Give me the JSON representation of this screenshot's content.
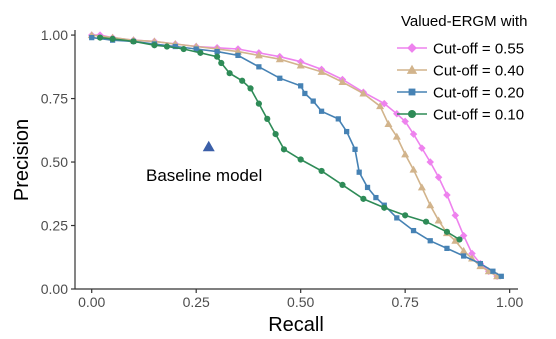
{
  "chart_data": {
    "type": "line",
    "xlabel": "Recall",
    "ylabel": "Precision",
    "xlim": [
      -0.04,
      1.02
    ],
    "ylim": [
      0,
      1.02
    ],
    "x_ticks": [
      "0.00",
      "0.25",
      "0.50",
      "0.75",
      "1.00"
    ],
    "y_ticks": [
      "0.00",
      "0.25",
      "0.50",
      "0.75",
      "1.00"
    ],
    "x_tick_values": [
      0,
      0.25,
      0.5,
      0.75,
      1.0
    ],
    "y_tick_values": [
      0,
      0.25,
      0.5,
      0.75,
      1.0
    ],
    "grid": false,
    "legend": {
      "title": "Valued-ERGM with",
      "placement": "top-right"
    },
    "series": [
      {
        "name": "Cut-off = 0.55",
        "color": "#ee82ee",
        "marker": "diamond",
        "points": [
          [
            0.0,
            1.0
          ],
          [
            0.02,
            1.0
          ],
          [
            0.05,
            0.99
          ],
          [
            0.1,
            0.98
          ],
          [
            0.15,
            0.975
          ],
          [
            0.2,
            0.965
          ],
          [
            0.25,
            0.955
          ],
          [
            0.3,
            0.95
          ],
          [
            0.35,
            0.945
          ],
          [
            0.4,
            0.93
          ],
          [
            0.45,
            0.915
          ],
          [
            0.5,
            0.895
          ],
          [
            0.55,
            0.865
          ],
          [
            0.6,
            0.825
          ],
          [
            0.65,
            0.775
          ],
          [
            0.7,
            0.73
          ],
          [
            0.73,
            0.69
          ],
          [
            0.75,
            0.66
          ],
          [
            0.77,
            0.61
          ],
          [
            0.79,
            0.555
          ],
          [
            0.81,
            0.5
          ],
          [
            0.83,
            0.44
          ],
          [
            0.85,
            0.37
          ],
          [
            0.87,
            0.29
          ],
          [
            0.89,
            0.21
          ],
          [
            0.91,
            0.14
          ],
          [
            0.93,
            0.1
          ],
          [
            0.95,
            0.07
          ],
          [
            0.97,
            0.05
          ]
        ]
      },
      {
        "name": "Cut-off = 0.40",
        "color": "#d2b48c",
        "marker": "triangle",
        "points": [
          [
            0.0,
            1.0
          ],
          [
            0.05,
            0.99
          ],
          [
            0.1,
            0.98
          ],
          [
            0.15,
            0.975
          ],
          [
            0.2,
            0.965
          ],
          [
            0.25,
            0.955
          ],
          [
            0.3,
            0.945
          ],
          [
            0.35,
            0.935
          ],
          [
            0.4,
            0.92
          ],
          [
            0.45,
            0.905
          ],
          [
            0.5,
            0.88
          ],
          [
            0.55,
            0.855
          ],
          [
            0.6,
            0.815
          ],
          [
            0.65,
            0.77
          ],
          [
            0.69,
            0.72
          ],
          [
            0.71,
            0.65
          ],
          [
            0.73,
            0.6
          ],
          [
            0.75,
            0.53
          ],
          [
            0.77,
            0.47
          ],
          [
            0.79,
            0.4
          ],
          [
            0.81,
            0.33
          ],
          [
            0.83,
            0.27
          ],
          [
            0.85,
            0.22
          ],
          [
            0.87,
            0.19
          ],
          [
            0.89,
            0.15
          ],
          [
            0.91,
            0.12
          ],
          [
            0.93,
            0.09
          ],
          [
            0.95,
            0.07
          ],
          [
            0.97,
            0.05
          ]
        ]
      },
      {
        "name": "Cut-off = 0.20",
        "color": "#4682b4",
        "marker": "square",
        "points": [
          [
            0.0,
            0.99
          ],
          [
            0.05,
            0.98
          ],
          [
            0.1,
            0.975
          ],
          [
            0.15,
            0.965
          ],
          [
            0.2,
            0.955
          ],
          [
            0.25,
            0.945
          ],
          [
            0.3,
            0.935
          ],
          [
            0.35,
            0.92
          ],
          [
            0.4,
            0.875
          ],
          [
            0.45,
            0.83
          ],
          [
            0.5,
            0.8
          ],
          [
            0.51,
            0.77
          ],
          [
            0.53,
            0.74
          ],
          [
            0.55,
            0.7
          ],
          [
            0.59,
            0.67
          ],
          [
            0.61,
            0.62
          ],
          [
            0.63,
            0.55
          ],
          [
            0.64,
            0.46
          ],
          [
            0.66,
            0.4
          ],
          [
            0.68,
            0.36
          ],
          [
            0.7,
            0.33
          ],
          [
            0.73,
            0.28
          ],
          [
            0.77,
            0.23
          ],
          [
            0.81,
            0.19
          ],
          [
            0.85,
            0.16
          ],
          [
            0.89,
            0.13
          ],
          [
            0.93,
            0.1
          ],
          [
            0.96,
            0.07
          ],
          [
            0.98,
            0.05
          ]
        ]
      },
      {
        "name": "Cut-off = 0.10",
        "color": "#2e8b57",
        "marker": "circle",
        "points": [
          [
            0.02,
            0.99
          ],
          [
            0.05,
            0.985
          ],
          [
            0.1,
            0.975
          ],
          [
            0.15,
            0.96
          ],
          [
            0.18,
            0.955
          ],
          [
            0.22,
            0.945
          ],
          [
            0.26,
            0.93
          ],
          [
            0.3,
            0.915
          ],
          [
            0.31,
            0.89
          ],
          [
            0.33,
            0.85
          ],
          [
            0.36,
            0.82
          ],
          [
            0.38,
            0.79
          ],
          [
            0.4,
            0.73
          ],
          [
            0.42,
            0.67
          ],
          [
            0.44,
            0.61
          ],
          [
            0.46,
            0.55
          ],
          [
            0.5,
            0.51
          ],
          [
            0.55,
            0.465
          ],
          [
            0.6,
            0.41
          ],
          [
            0.65,
            0.355
          ],
          [
            0.7,
            0.32
          ],
          [
            0.75,
            0.29
          ],
          [
            0.8,
            0.265
          ],
          [
            0.85,
            0.225
          ],
          [
            0.88,
            0.195
          ]
        ]
      }
    ],
    "annotations": [
      {
        "label": "Baseline model",
        "marker": "triangle",
        "color": "#3b5fa8",
        "x": 0.28,
        "y": 0.56
      }
    ]
  }
}
